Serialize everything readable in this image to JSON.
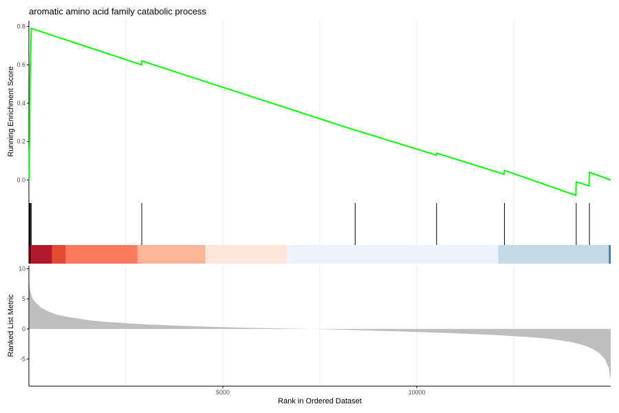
{
  "chart_data": {
    "type": "line",
    "title": "aromatic amino acid family catabolic process",
    "xlabel": "Rank in Ordered Dataset",
    "xlim": [
      0,
      15000
    ],
    "x_ticks": [
      5000,
      10000
    ],
    "line_color": "#00ff00",
    "es_panel": {
      "ylabel": "Running Enrichment Score",
      "ylim": [
        -0.12,
        0.83
      ],
      "y_ticks": [
        0.0,
        0.2,
        0.4,
        0.6,
        0.8
      ],
      "series": [
        {
          "x": [
            0,
            10,
            12,
            20,
            25,
            35,
            40,
            60,
            2900,
            2910,
            8400,
            8410,
            10500,
            10510,
            12250,
            12260,
            14100,
            14110,
            14440,
            14450,
            15000
          ],
          "y": [
            0.0,
            0.05,
            0.15,
            0.2,
            0.4,
            0.6,
            0.6,
            0.79,
            0.6,
            0.62,
            0.26,
            0.26,
            0.13,
            0.14,
            0.03,
            0.05,
            -0.08,
            -0.01,
            -0.03,
            0.04,
            0.0
          ]
        }
      ]
    },
    "hit_positions": [
      10,
      20,
      25,
      35,
      40,
      60,
      2910,
      8410,
      10510,
      12260,
      14110,
      14450
    ],
    "rank_bands": [
      {
        "start": 0,
        "end": 60,
        "color": "#67000d"
      },
      {
        "start": 60,
        "end": 600,
        "color": "#b2182b"
      },
      {
        "start": 600,
        "end": 950,
        "color": "#e34a33"
      },
      {
        "start": 950,
        "end": 2800,
        "color": "#fb7b5f"
      },
      {
        "start": 2800,
        "end": 4550,
        "color": "#fcb499"
      },
      {
        "start": 4550,
        "end": 6650,
        "color": "#fee6dc"
      },
      {
        "start": 6650,
        "end": 12100,
        "color": "#eef3fb"
      },
      {
        "start": 12100,
        "end": 14950,
        "color": "#c2dae8"
      },
      {
        "start": 14950,
        "end": 15000,
        "color": "#3a7fb5"
      }
    ],
    "metric_panel": {
      "ylabel": "Ranked List Metric",
      "ylim": [
        -9.5,
        10.5
      ],
      "y_ticks": [
        -5,
        0,
        5,
        10
      ],
      "fill_color": "#bebebe",
      "x": [
        0,
        20,
        50,
        100,
        200,
        300,
        500,
        700,
        1000,
        1500,
        2000,
        3000,
        4000,
        5000,
        6000,
        7000,
        7300,
        8000,
        9000,
        10000,
        11000,
        12000,
        13000,
        13500,
        14000,
        14300,
        14500,
        14700,
        14850,
        14950,
        15000
      ],
      "values": [
        8.0,
        7.0,
        6.0,
        5.0,
        4.2,
        3.6,
        2.9,
        2.4,
        2.0,
        1.5,
        1.15,
        0.75,
        0.5,
        0.3,
        0.15,
        0.03,
        0.0,
        -0.12,
        -0.3,
        -0.5,
        -0.72,
        -1.0,
        -1.4,
        -1.7,
        -2.2,
        -2.7,
        -3.2,
        -4.0,
        -5.0,
        -6.5,
        -8.5
      ]
    }
  }
}
